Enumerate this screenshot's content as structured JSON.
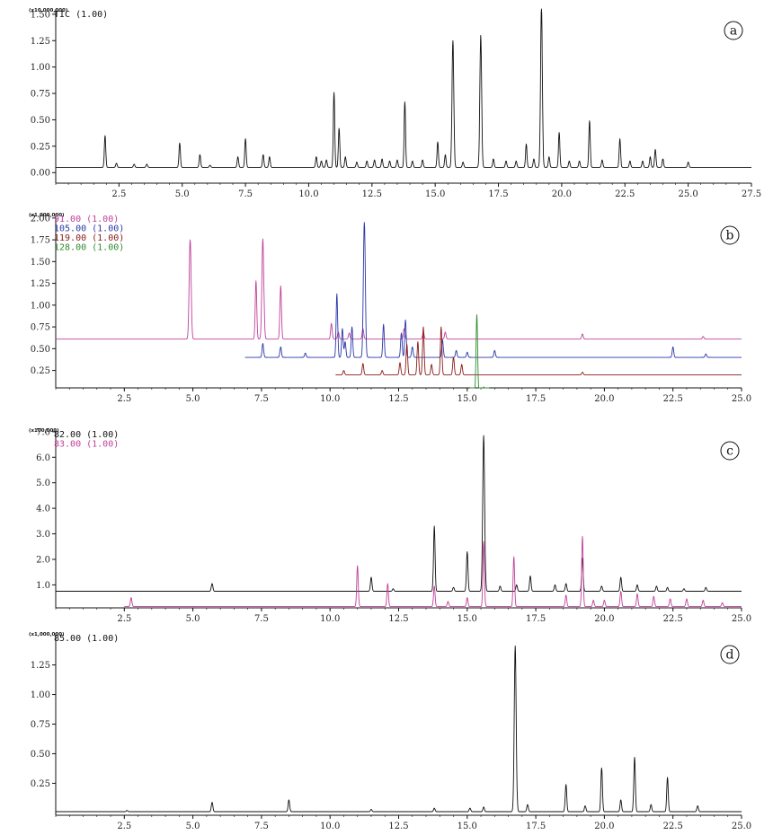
{
  "chart_data": [
    {
      "panel": "a",
      "type": "line",
      "scale_label": "(x10,000,000)",
      "xlim": [
        0,
        27.5
      ],
      "xticks": [
        "2.5",
        "5.0",
        "7.5",
        "10.0",
        "12.5",
        "15.0",
        "17.5",
        "20.0",
        "22.5",
        "25.0",
        "27.5"
      ],
      "ylim": [
        -0.1,
        1.55
      ],
      "yticks": [
        "0.00",
        "0.25",
        "0.50",
        "0.75",
        "1.00",
        "1.25",
        "1.50"
      ],
      "series": [
        {
          "name": "TIC (1.00)",
          "color": "#111111",
          "baseline": 0.05,
          "peaks": [
            [
              1.95,
              0.3
            ],
            [
              2.4,
              0.04
            ],
            [
              3.1,
              0.03
            ],
            [
              3.6,
              0.03
            ],
            [
              4.9,
              0.23
            ],
            [
              5.7,
              0.12
            ],
            [
              6.1,
              0.02
            ],
            [
              7.2,
              0.1
            ],
            [
              7.5,
              0.27
            ],
            [
              8.2,
              0.12
            ],
            [
              8.45,
              0.1
            ],
            [
              10.3,
              0.1
            ],
            [
              10.5,
              0.06
            ],
            [
              10.7,
              0.07
            ],
            [
              11.0,
              0.71
            ],
            [
              11.2,
              0.37
            ],
            [
              11.45,
              0.1
            ],
            [
              11.9,
              0.05
            ],
            [
              12.3,
              0.06
            ],
            [
              12.6,
              0.07
            ],
            [
              12.9,
              0.08
            ],
            [
              13.2,
              0.06
            ],
            [
              13.5,
              0.07
            ],
            [
              13.8,
              0.62
            ],
            [
              14.1,
              0.06
            ],
            [
              14.5,
              0.07
            ],
            [
              15.1,
              0.24
            ],
            [
              15.4,
              0.12
            ],
            [
              15.7,
              1.2
            ],
            [
              16.1,
              0.05
            ],
            [
              16.8,
              1.25
            ],
            [
              17.3,
              0.08
            ],
            [
              17.8,
              0.06
            ],
            [
              18.2,
              0.06
            ],
            [
              18.6,
              0.22
            ],
            [
              18.9,
              0.08
            ],
            [
              19.2,
              1.52
            ],
            [
              19.5,
              0.1
            ],
            [
              19.9,
              0.33
            ],
            [
              20.3,
              0.06
            ],
            [
              20.7,
              0.06
            ],
            [
              21.1,
              0.44
            ],
            [
              21.6,
              0.07
            ],
            [
              22.3,
              0.27
            ],
            [
              22.7,
              0.06
            ],
            [
              23.2,
              0.06
            ],
            [
              23.5,
              0.1
            ],
            [
              23.7,
              0.17
            ],
            [
              24.0,
              0.08
            ],
            [
              25.0,
              0.05
            ]
          ]
        }
      ]
    },
    {
      "panel": "b",
      "type": "line",
      "scale_label": "(x1,000,000)",
      "xlim": [
        0,
        25.0
      ],
      "xticks": [
        "2.5",
        "5.0",
        "7.5",
        "10.0",
        "12.5",
        "15.0",
        "17.5",
        "20.0",
        "22.5",
        "25.0"
      ],
      "ylim": [
        0.05,
        2.05
      ],
      "yticks": [
        "0.25",
        "0.50",
        "0.75",
        "1.00",
        "1.25",
        "1.50",
        "1.75",
        "2.00"
      ],
      "series": [
        {
          "name": "91.00 (1.00)",
          "color": "#c0409a",
          "baseline": 0.61,
          "start": 0,
          "peaks": [
            [
              4.9,
              1.14
            ],
            [
              7.3,
              0.67
            ],
            [
              7.55,
              1.15
            ],
            [
              8.2,
              0.61
            ],
            [
              10.05,
              0.18
            ],
            [
              10.3,
              0.08
            ],
            [
              10.7,
              0.07
            ],
            [
              11.2,
              0.12
            ],
            [
              12.7,
              0.12
            ],
            [
              13.4,
              0.08
            ],
            [
              14.2,
              0.08
            ],
            [
              19.2,
              0.06
            ],
            [
              23.6,
              0.03
            ]
          ]
        },
        {
          "name": "105.00 (1.00)",
          "color": "#2a37a8",
          "baseline": 0.4,
          "start": 6.9,
          "peaks": [
            [
              7.55,
              0.16
            ],
            [
              8.2,
              0.12
            ],
            [
              9.1,
              0.05
            ],
            [
              10.25,
              0.73
            ],
            [
              10.45,
              0.33
            ],
            [
              10.55,
              0.18
            ],
            [
              10.8,
              0.35
            ],
            [
              11.25,
              1.55
            ],
            [
              11.95,
              0.38
            ],
            [
              12.6,
              0.28
            ],
            [
              12.75,
              0.43
            ],
            [
              13.0,
              0.12
            ],
            [
              14.1,
              0.2
            ],
            [
              14.6,
              0.08
            ],
            [
              15.0,
              0.06
            ],
            [
              16.0,
              0.08
            ],
            [
              22.5,
              0.12
            ],
            [
              23.7,
              0.04
            ]
          ]
        },
        {
          "name": "119.00 (1.00)",
          "color": "#8b1a1a",
          "baseline": 0.2,
          "start": 10.2,
          "peaks": [
            [
              10.5,
              0.05
            ],
            [
              11.2,
              0.13
            ],
            [
              11.9,
              0.05
            ],
            [
              12.55,
              0.14
            ],
            [
              12.8,
              0.35
            ],
            [
              13.2,
              0.38
            ],
            [
              13.4,
              0.55
            ],
            [
              13.7,
              0.12
            ],
            [
              14.05,
              0.55
            ],
            [
              14.5,
              0.2
            ],
            [
              14.8,
              0.12
            ],
            [
              19.2,
              0.03
            ]
          ]
        },
        {
          "name": "128.00 (1.00)",
          "color": "#2e8b2e",
          "baseline": 0.01,
          "start": 15.1,
          "end": 15.8,
          "peaks": [
            [
              15.35,
              0.88
            ],
            [
              15.6,
              0.05
            ]
          ]
        }
      ]
    },
    {
      "panel": "c",
      "type": "line",
      "scale_label": "(x100,000)",
      "xlim": [
        0,
        25.0
      ],
      "xticks": [
        "2.5",
        "5.0",
        "7.5",
        "10.0",
        "12.5",
        "15.0",
        "17.5",
        "20.0",
        "22.5",
        "25.0"
      ],
      "ylim": [
        0.1,
        7.1
      ],
      "yticks": [
        "1.0",
        "2.0",
        "3.0",
        "4.0",
        "5.0",
        "6.0",
        "7.0"
      ],
      "series": [
        {
          "name": "82.00 (1.00)",
          "color": "#111111",
          "baseline": 0.75,
          "start": 0,
          "peaks": [
            [
              5.7,
              0.3
            ],
            [
              11.5,
              0.55
            ],
            [
              12.3,
              0.1
            ],
            [
              13.8,
              2.55
            ],
            [
              14.5,
              0.15
            ],
            [
              15.0,
              1.55
            ],
            [
              15.6,
              6.1
            ],
            [
              16.2,
              0.2
            ],
            [
              16.8,
              0.25
            ],
            [
              17.3,
              0.6
            ],
            [
              18.2,
              0.25
            ],
            [
              18.6,
              0.3
            ],
            [
              19.2,
              1.3
            ],
            [
              19.9,
              0.2
            ],
            [
              20.6,
              0.55
            ],
            [
              21.2,
              0.25
            ],
            [
              21.9,
              0.2
            ],
            [
              22.3,
              0.15
            ],
            [
              22.9,
              0.1
            ],
            [
              23.7,
              0.15
            ]
          ]
        },
        {
          "name": "83.00 (1.00)",
          "color": "#c0409a",
          "baseline": 0.15,
          "start": 2.5,
          "peaks": [
            [
              2.75,
              0.35
            ],
            [
              11.0,
              1.6
            ],
            [
              12.1,
              0.9
            ],
            [
              13.8,
              0.8
            ],
            [
              14.3,
              0.2
            ],
            [
              15.0,
              0.35
            ],
            [
              15.6,
              2.55
            ],
            [
              16.7,
              1.95
            ],
            [
              18.6,
              0.45
            ],
            [
              19.2,
              2.75
            ],
            [
              19.6,
              0.25
            ],
            [
              20.0,
              0.25
            ],
            [
              20.6,
              0.6
            ],
            [
              21.2,
              0.5
            ],
            [
              21.8,
              0.4
            ],
            [
              22.4,
              0.3
            ],
            [
              23.0,
              0.3
            ],
            [
              23.6,
              0.25
            ],
            [
              24.3,
              0.15
            ]
          ]
        }
      ]
    },
    {
      "panel": "d",
      "type": "line",
      "scale_label": "(x1,000,000)",
      "xlim": [
        0,
        25.0
      ],
      "xticks": [
        "2.5",
        "5.0",
        "7.5",
        "10.0",
        "12.5",
        "15.0",
        "17.5",
        "20.0",
        "22.5",
        "25.0"
      ],
      "ylim": [
        -0.02,
        1.52
      ],
      "yticks": [
        "0.25",
        "0.50",
        "0.75",
        "1.00",
        "1.25"
      ],
      "series": [
        {
          "name": "85.00 (1.00)",
          "color": "#111111",
          "baseline": 0.01,
          "start": 0,
          "peaks": [
            [
              2.6,
              0.01
            ],
            [
              5.7,
              0.08
            ],
            [
              8.5,
              0.1
            ],
            [
              11.5,
              0.02
            ],
            [
              13.8,
              0.03
            ],
            [
              15.1,
              0.03
            ],
            [
              15.6,
              0.04
            ],
            [
              16.75,
              1.4
            ],
            [
              17.2,
              0.06
            ],
            [
              18.6,
              0.23
            ],
            [
              19.3,
              0.05
            ],
            [
              19.9,
              0.37
            ],
            [
              20.6,
              0.1
            ],
            [
              21.1,
              0.46
            ],
            [
              21.7,
              0.06
            ],
            [
              22.3,
              0.29
            ],
            [
              23.4,
              0.05
            ]
          ]
        }
      ]
    }
  ],
  "panels": [
    {
      "id": "a",
      "scale": "(x10,000,000)",
      "legend": [
        "TIC (1.00)"
      ]
    },
    {
      "id": "b",
      "scale": "(x1,000,000)",
      "legend": [
        "91.00 (1.00)",
        "105.00 (1.00)",
        "119.00 (1.00)",
        "128.00 (1.00)"
      ]
    },
    {
      "id": "c",
      "scale": "(x100,000)",
      "legend": [
        "82.00 (1.00)",
        "83.00 (1.00)"
      ]
    },
    {
      "id": "d",
      "scale": "(x1,000,000)",
      "legend": [
        "85.00 (1.00)"
      ]
    }
  ]
}
